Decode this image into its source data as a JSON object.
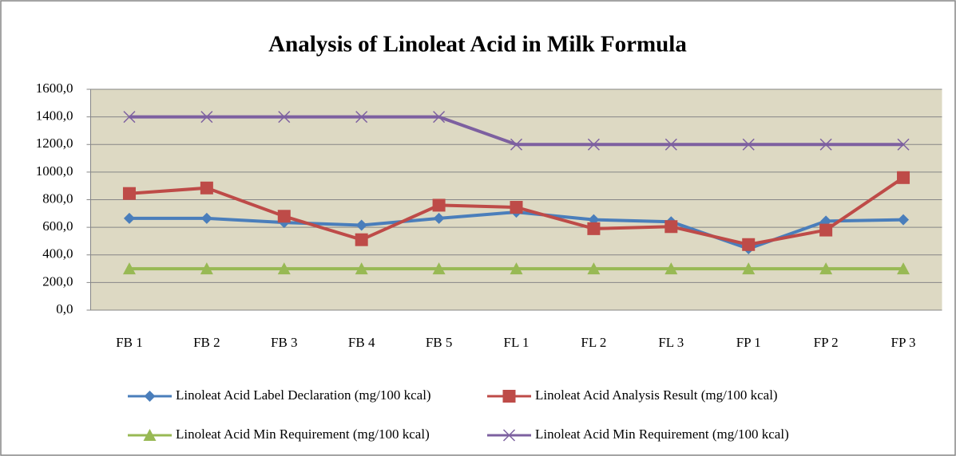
{
  "chart_data": {
    "type": "line",
    "title": "Analysis of Linoleat Acid in Milk Formula",
    "categories": [
      "FB 1",
      "FB 2",
      "FB 3",
      "FB 4",
      "FB 5",
      "FL 1",
      "FL 2",
      "FL 3",
      "FP 1",
      "FP 2",
      "FP 3"
    ],
    "series": [
      {
        "name": "Linoleat Acid Label Declaration (mg/100 kcal)",
        "color": "#4a7ebb",
        "marker": "diamond",
        "values": [
          665,
          665,
          635,
          615,
          665,
          710,
          655,
          640,
          445,
          645,
          655
        ]
      },
      {
        "name": "Linoleat Acid Analysis Result (mg/100 kcal)",
        "color": "#be4b48",
        "marker": "square",
        "values": [
          845,
          885,
          680,
          510,
          760,
          745,
          590,
          605,
          475,
          580,
          960
        ]
      },
      {
        "name": "Linoleat Acid Min Requirement (mg/100 kcal)",
        "color": "#98b954",
        "marker": "triangle",
        "values": [
          300,
          300,
          300,
          300,
          300,
          300,
          300,
          300,
          300,
          300,
          300
        ]
      },
      {
        "name": "Linoleat Acid Min Requirement (mg/100 kcal)",
        "color": "#7d60a0",
        "marker": "x",
        "values": [
          1400,
          1400,
          1400,
          1400,
          1400,
          1200,
          1200,
          1200,
          1200,
          1200,
          1200
        ]
      }
    ],
    "ylim": [
      0,
      1600
    ],
    "yticks": [
      {
        "value": 0,
        "label": "0,0"
      },
      {
        "value": 200,
        "label": "200,0"
      },
      {
        "value": 400,
        "label": "400,0"
      },
      {
        "value": 600,
        "label": "600,0"
      },
      {
        "value": 800,
        "label": "800,0"
      },
      {
        "value": 1000,
        "label": "1000,0"
      },
      {
        "value": 1200,
        "label": "1200,0"
      },
      {
        "value": 1400,
        "label": "1400,0"
      },
      {
        "value": 1600,
        "label": "1600,0"
      }
    ],
    "grid": true,
    "plot_background": "#ddd9c3",
    "legend": "bottom"
  }
}
